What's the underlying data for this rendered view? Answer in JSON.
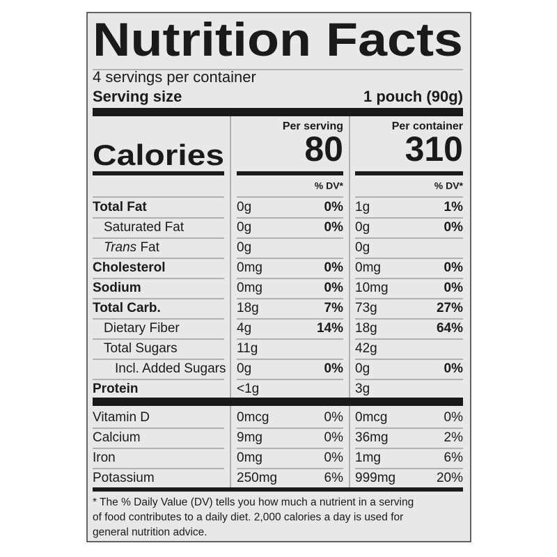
{
  "title": "Nutrition Facts",
  "servings": "4 servings per container",
  "serving_size": {
    "label": "Serving size",
    "value": "1 pouch (90g)"
  },
  "calories": {
    "label": "Calories",
    "columns": [
      {
        "header": "Per serving",
        "value": "80",
        "dv_header": "% DV*"
      },
      {
        "header": "Per container",
        "value": "310",
        "dv_header": "% DV*"
      }
    ]
  },
  "nutrients": [
    {
      "name": "Total Fat",
      "bold": true,
      "level": 0,
      "serving": [
        "0g",
        "0%"
      ],
      "container": [
        "1g",
        "1%"
      ]
    },
    {
      "name": "Saturated Fat",
      "bold": false,
      "level": 1,
      "serving": [
        "0g",
        "0%"
      ],
      "container": [
        "0g",
        "0%"
      ]
    },
    {
      "italic_prefix": "Trans",
      "name": " Fat",
      "bold": false,
      "level": 1,
      "serving": [
        "0g",
        null
      ],
      "container": [
        "0g",
        null
      ]
    },
    {
      "name": "Cholesterol",
      "bold": true,
      "level": 0,
      "serving": [
        "0mg",
        "0%"
      ],
      "container": [
        "0mg",
        "0%"
      ]
    },
    {
      "name": "Sodium",
      "bold": true,
      "level": 0,
      "serving": [
        "0mg",
        "0%"
      ],
      "container": [
        "10mg",
        "0%"
      ]
    },
    {
      "name": "Total Carb.",
      "bold": true,
      "level": 0,
      "serving": [
        "18g",
        "7%"
      ],
      "container": [
        "73g",
        "27%"
      ]
    },
    {
      "name": "Dietary Fiber",
      "bold": false,
      "level": 1,
      "serving": [
        "4g",
        "14%"
      ],
      "container": [
        "18g",
        "64%"
      ]
    },
    {
      "name": "Total Sugars",
      "bold": false,
      "level": 1,
      "serving": [
        "11g",
        null
      ],
      "container": [
        "42g",
        null
      ]
    },
    {
      "name": "Incl. Added Sugars",
      "bold": false,
      "level": 2,
      "serving": [
        "0g",
        "0%"
      ],
      "container": [
        "0g",
        "0%"
      ]
    },
    {
      "name": "Protein",
      "bold": true,
      "level": 0,
      "serving": [
        "<1g",
        null
      ],
      "container": [
        "3g",
        null
      ]
    }
  ],
  "vitamins": [
    {
      "name": "Vitamin D",
      "serving": [
        "0mcg",
        "0%"
      ],
      "container": [
        "0mcg",
        "0%"
      ]
    },
    {
      "name": "Calcium",
      "serving": [
        "9mg",
        "0%"
      ],
      "container": [
        "36mg",
        "2%"
      ]
    },
    {
      "name": "Iron",
      "serving": [
        "0mg",
        "0%"
      ],
      "container": [
        "1mg",
        "6%"
      ]
    },
    {
      "name": "Potassium",
      "serving": [
        "250mg",
        "6%"
      ],
      "container": [
        "999mg",
        "20%"
      ]
    }
  ],
  "footnote": [
    "* The % Daily Value (DV) tells you how much a nutrient in a serving",
    "of food contributes to a daily diet. 2,000 calories a day is used for",
    "general nutrition advice."
  ]
}
